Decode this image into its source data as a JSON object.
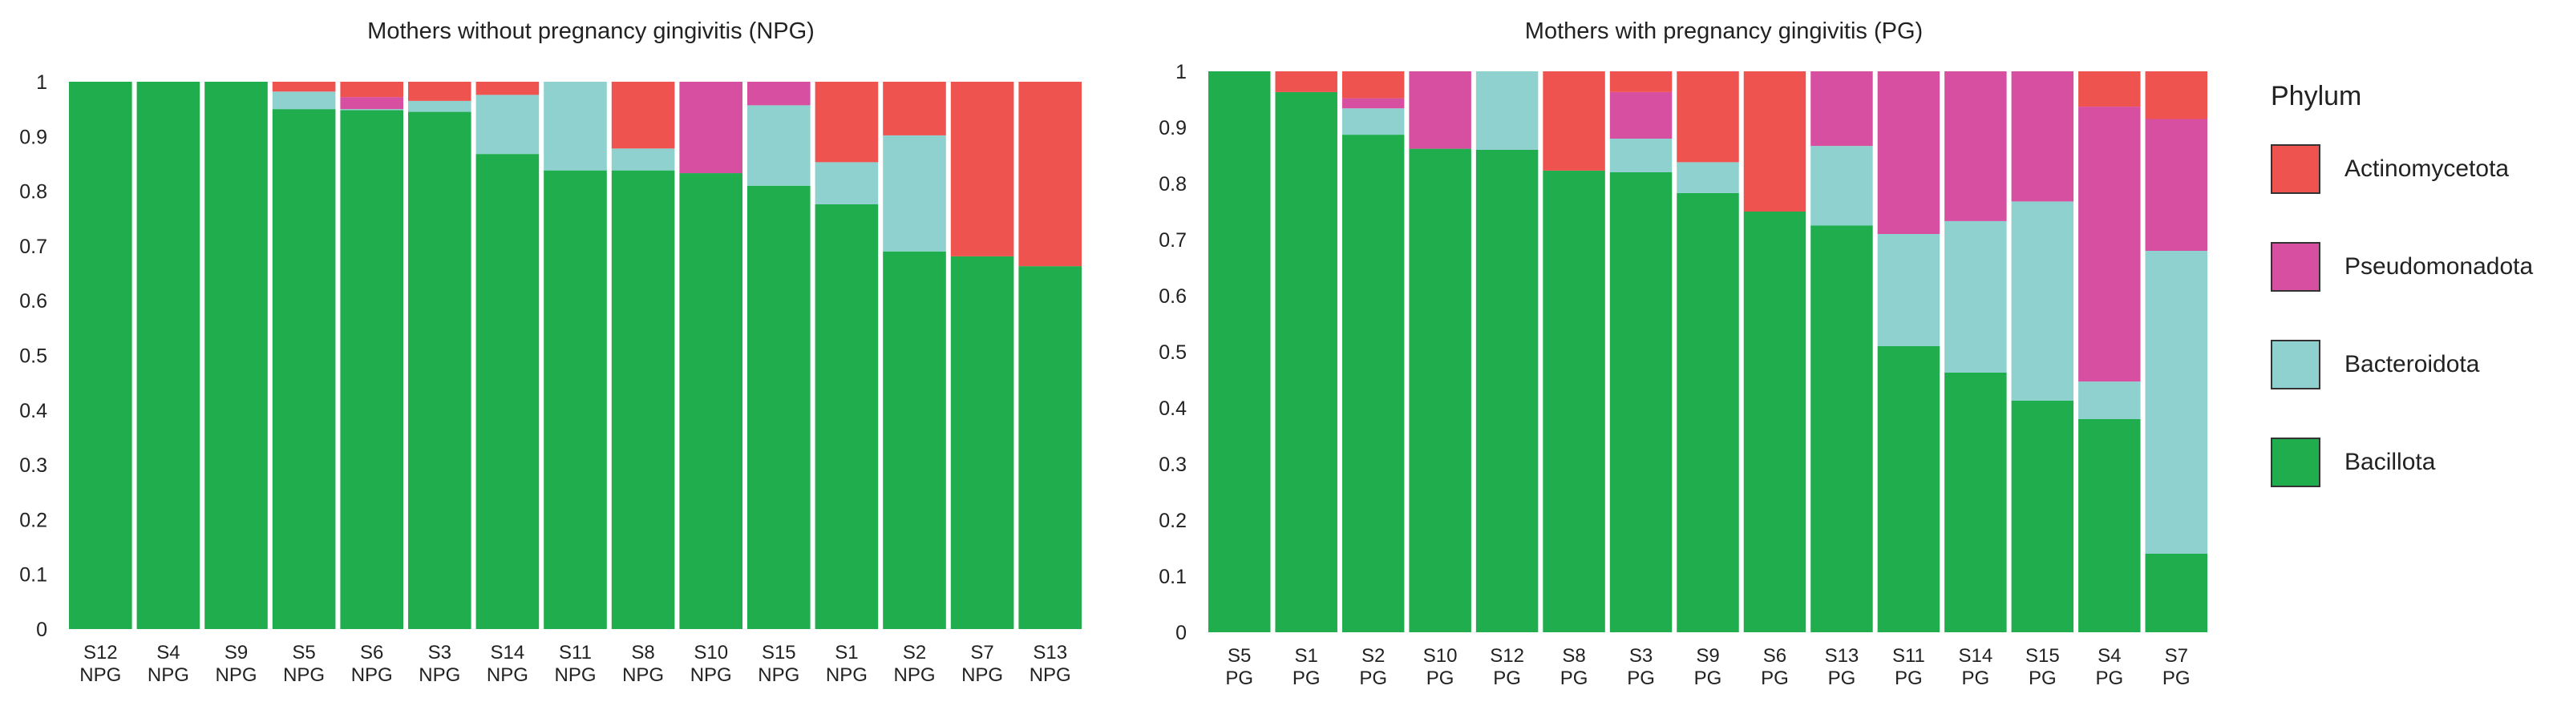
{
  "colors": {
    "Actinomycetota": "#EF5350",
    "Pseudomonadota": "#D64FA1",
    "Bacteroidota": "#8ED1CF",
    "Bacillota": "#1FAD4E"
  },
  "legend": {
    "title": "Phylum",
    "items": [
      {
        "label": "Actinomycetota",
        "color": "#EF5350"
      },
      {
        "label": "Pseudomonadota",
        "color": "#D64FA1"
      },
      {
        "label": "Bacteroidota",
        "color": "#8ED1CF"
      },
      {
        "label": "Bacillota",
        "color": "#1FAD4E"
      }
    ]
  },
  "chart_data": [
    {
      "type": "bar",
      "stacked": true,
      "title": "Mothers without pregnancy gingivitis (NPG)",
      "xlabel": "",
      "ylabel": "",
      "ylim": [
        0,
        1
      ],
      "yticks": [
        "0",
        "0.1",
        "0.2",
        "0.3",
        "0.4",
        "0.5",
        "0.6",
        "0.7",
        "0.8",
        "0.9",
        "1"
      ],
      "categories": [
        "S12",
        "S4",
        "S9",
        "S5",
        "S6",
        "S3",
        "S14",
        "S11",
        "S8",
        "S10",
        "S15",
        "S1",
        "S2",
        "S7",
        "S13"
      ],
      "group": "NPG",
      "series": [
        {
          "name": "Bacillota",
          "values": [
            1.0,
            1.0,
            1.0,
            0.95,
            0.948,
            0.945,
            0.868,
            0.838,
            0.838,
            0.833,
            0.81,
            0.776,
            0.69,
            0.681,
            0.663
          ]
        },
        {
          "name": "Bacteroidota",
          "values": [
            0,
            0,
            0,
            0.032,
            0.002,
            0.02,
            0.108,
            0.162,
            0.04,
            0,
            0.147,
            0.077,
            0.212,
            0,
            0
          ]
        },
        {
          "name": "Pseudomonadota",
          "values": [
            0,
            0,
            0,
            0,
            0.022,
            0,
            0,
            0,
            0,
            0.167,
            0.043,
            0,
            0,
            0,
            0
          ]
        },
        {
          "name": "Actinomycetota",
          "values": [
            0,
            0,
            0,
            0.018,
            0.028,
            0.035,
            0.024,
            0,
            0.122,
            0,
            0,
            0.147,
            0.098,
            0.319,
            0.337
          ]
        }
      ]
    },
    {
      "type": "bar",
      "stacked": true,
      "title": "Mothers with pregnancy gingivitis (PG)",
      "xlabel": "",
      "ylabel": "",
      "ylim": [
        0,
        1
      ],
      "yticks": [
        "0",
        "0.1",
        "0.2",
        "0.3",
        "0.4",
        "0.5",
        "0.6",
        "0.7",
        "0.8",
        "0.9",
        "1"
      ],
      "categories": [
        "S5",
        "S1",
        "S2",
        "S10",
        "S12",
        "S8",
        "S3",
        "S9",
        "S6",
        "S13",
        "S11",
        "S14",
        "S15",
        "S4",
        "S7"
      ],
      "group": "PG",
      "series": [
        {
          "name": "Bacillota",
          "values": [
            1.0,
            0.963,
            0.887,
            0.862,
            0.86,
            0.823,
            0.82,
            0.783,
            0.75,
            0.725,
            0.51,
            0.463,
            0.413,
            0.38,
            0.14
          ]
        },
        {
          "name": "Bacteroidota",
          "values": [
            0,
            0,
            0.047,
            0,
            0.14,
            0,
            0.06,
            0.055,
            0,
            0.142,
            0.2,
            0.27,
            0.355,
            0.067,
            0.54
          ]
        },
        {
          "name": "Pseudomonadota",
          "values": [
            0,
            0,
            0.018,
            0.138,
            0,
            0,
            0.083,
            0,
            0,
            0.133,
            0.29,
            0.267,
            0.232,
            0.49,
            0.235
          ]
        },
        {
          "name": "Actinomycetota",
          "values": [
            0,
            0.037,
            0.048,
            0,
            0,
            0.177,
            0.037,
            0.162,
            0.25,
            0,
            0,
            0,
            0,
            0.063,
            0.085
          ]
        }
      ]
    }
  ]
}
